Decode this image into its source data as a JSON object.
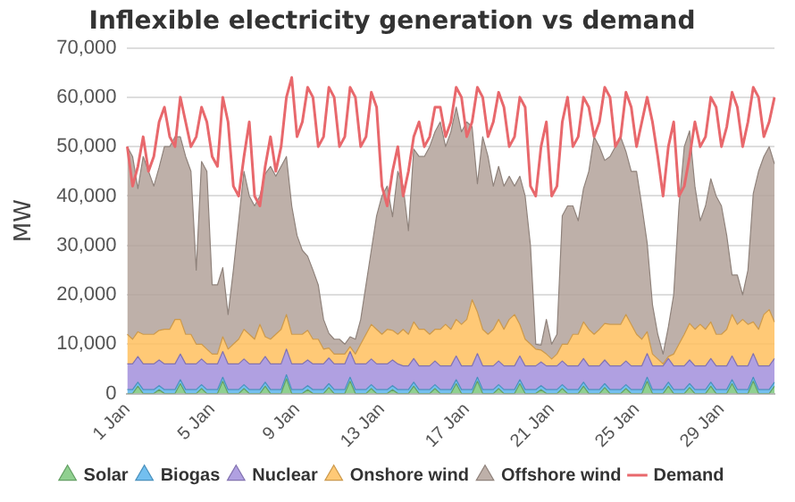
{
  "chart_data": {
    "type": "area",
    "title": "Inflexible electricity generation vs demand",
    "ylabel": "MW",
    "stacked": true,
    "grid": "y",
    "legend": "bottom",
    "marker": "none",
    "categories": [
      "1 Jan",
      null,
      null,
      null,
      null,
      null,
      null,
      null,
      null,
      null,
      null,
      null,
      null,
      null,
      null,
      null,
      "5 Jan",
      null,
      null,
      null,
      null,
      null,
      null,
      null,
      null,
      null,
      null,
      null,
      null,
      null,
      null,
      null,
      "9 Jan",
      null,
      null,
      null,
      null,
      null,
      null,
      null,
      null,
      null,
      null,
      null,
      null,
      null,
      null,
      null,
      "13 Jan",
      null,
      null,
      null,
      null,
      null,
      null,
      null,
      null,
      null,
      null,
      null,
      null,
      null,
      null,
      null,
      "17 Jan",
      null,
      null,
      null,
      null,
      null,
      null,
      null,
      null,
      null,
      null,
      null,
      null,
      null,
      null,
      null,
      "21 Jan",
      null,
      null,
      null,
      null,
      null,
      null,
      null,
      null,
      null,
      null,
      null,
      null,
      null,
      null,
      null,
      "25 Jan",
      null,
      null,
      null,
      null,
      null,
      null,
      null,
      null,
      null,
      null,
      null,
      null,
      null,
      null,
      null,
      "29 Jan",
      null,
      null,
      null,
      null,
      null,
      null,
      null,
      null,
      null,
      null
    ],
    "ylim": [
      0,
      70000
    ],
    "yticks": [
      0,
      {
        "value": 10000,
        "label": "10,000"
      },
      {
        "value": 20000,
        "label": "20,000"
      },
      {
        "value": 30000,
        "label": "30,000"
      },
      {
        "value": 40000,
        "label": "40,000"
      },
      {
        "value": 50000,
        "label": "50,000"
      },
      {
        "value": 60000,
        "label": "60,000"
      },
      {
        "value": 70000,
        "label": "70,000"
      }
    ],
    "series": [
      {
        "name": "Solar",
        "type": "area",
        "color": "#7cc87c",
        "values": [
          0,
          0,
          1500,
          0,
          0,
          0,
          800,
          0,
          0,
          0,
          2000,
          0,
          0,
          0,
          1000,
          0,
          0,
          0,
          2500,
          0,
          0,
          0,
          1000,
          0,
          0,
          0,
          1500,
          0,
          0,
          0,
          3000,
          0,
          0,
          0,
          800,
          0,
          0,
          0,
          1200,
          0,
          0,
          0,
          2500,
          0,
          0,
          0,
          1000,
          0,
          0,
          0,
          800,
          0,
          0,
          0,
          1500,
          0,
          0,
          0,
          1000,
          0,
          0,
          0,
          2000,
          0,
          0,
          0,
          2500,
          0,
          0,
          0,
          1000,
          0,
          0,
          0,
          2000,
          0,
          0,
          0,
          800,
          0,
          0,
          0,
          1000,
          0,
          0,
          0,
          1500,
          0,
          0,
          0,
          1200,
          0,
          0,
          0,
          1000,
          0,
          0,
          0,
          2500,
          0,
          0,
          0,
          1500,
          0,
          0,
          0,
          1200,
          0,
          0,
          0,
          1500,
          0,
          0,
          0,
          2000,
          0,
          0,
          0,
          2500,
          0,
          0,
          0,
          1500
        ]
      },
      {
        "name": "Biogas",
        "type": "area",
        "color": "#5ab4ec",
        "values": [
          800,
          800,
          800,
          800,
          800,
          800,
          800,
          800,
          800,
          800,
          800,
          800,
          800,
          800,
          800,
          800,
          800,
          800,
          800,
          800,
          800,
          800,
          800,
          800,
          800,
          800,
          800,
          800,
          800,
          800,
          800,
          800,
          800,
          800,
          800,
          800,
          800,
          800,
          800,
          800,
          800,
          800,
          800,
          800,
          800,
          800,
          800,
          800,
          800,
          800,
          800,
          800,
          800,
          800,
          800,
          800,
          800,
          800,
          800,
          800,
          800,
          800,
          800,
          800,
          800,
          800,
          800,
          800,
          800,
          800,
          800,
          800,
          800,
          800,
          800,
          800,
          800,
          800,
          800,
          800,
          800,
          800,
          800,
          800,
          800,
          800,
          800,
          800,
          800,
          800,
          800,
          800,
          800,
          800,
          800,
          800,
          800,
          800,
          800,
          800,
          800,
          800,
          800,
          800,
          800,
          800,
          800,
          800,
          800,
          800,
          800,
          800,
          800,
          800,
          800,
          800,
          800,
          800,
          800,
          800,
          800,
          800,
          800
        ]
      },
      {
        "name": "Nuclear",
        "type": "area",
        "color": "#a28fdc",
        "values": [
          5200,
          5200,
          5200,
          5200,
          5200,
          5200,
          5200,
          5200,
          5200,
          5200,
          5200,
          5200,
          5200,
          5200,
          5200,
          5200,
          5200,
          5200,
          5200,
          5200,
          5200,
          5200,
          5200,
          5200,
          5200,
          5200,
          5200,
          5200,
          5200,
          5200,
          5200,
          5200,
          5200,
          5200,
          5200,
          5200,
          5200,
          5200,
          5200,
          5200,
          5200,
          5200,
          5200,
          5200,
          5200,
          5200,
          5200,
          5200,
          5200,
          5200,
          5200,
          5200,
          4800,
          4800,
          4800,
          4800,
          4800,
          4800,
          4800,
          4800,
          4800,
          4800,
          4800,
          4800,
          4800,
          4800,
          4800,
          4800,
          4800,
          4800,
          4800,
          4800,
          4800,
          4800,
          4800,
          4800,
          4800,
          4800,
          4800,
          4800,
          4800,
          4800,
          4800,
          4800,
          4800,
          4800,
          4800,
          4800,
          4800,
          4800,
          4800,
          4800,
          4800,
          4800,
          4800,
          4800,
          4800,
          4800,
          4800,
          4800,
          4800,
          4800,
          4800,
          4800,
          4800,
          4800,
          4800,
          4800,
          4800,
          4800,
          4800,
          4800,
          4800,
          4800,
          4800,
          4800,
          4800,
          4800,
          4800,
          4800,
          4800,
          4800,
          4800
        ]
      },
      {
        "name": "Onshore wind",
        "type": "area",
        "color": "#ffbf5e",
        "values": [
          6000,
          5000,
          5000,
          6000,
          6000,
          6000,
          6000,
          7000,
          7000,
          9000,
          7000,
          6000,
          6000,
          4000,
          3000,
          3000,
          2000,
          2000,
          3000,
          3000,
          4000,
          5000,
          6000,
          6000,
          5000,
          8000,
          4000,
          5000,
          6000,
          7000,
          7000,
          6000,
          6000,
          6000,
          6000,
          5000,
          5000,
          3000,
          2000,
          2000,
          2000,
          2000,
          1000,
          2000,
          4000,
          6000,
          7000,
          7000,
          6000,
          7000,
          6000,
          6000,
          7400,
          6400,
          7400,
          7400,
          7400,
          6400,
          6400,
          7400,
          8400,
          7400,
          7400,
          8400,
          9400,
          13400,
          8400,
          7400,
          6400,
          7400,
          8400,
          7400,
          9400,
          10400,
          6400,
          5400,
          4400,
          3400,
          2400,
          2400,
          1400,
          2400,
          3400,
          4400,
          6400,
          6400,
          7400,
          7400,
          6400,
          7400,
          7400,
          8400,
          8400,
          8400,
          9400,
          8400,
          6400,
          5400,
          4400,
          2400,
          1400,
          400,
          400,
          2400,
          4400,
          6400,
          7400,
          7400,
          8400,
          7400,
          7400,
          6400,
          6400,
          7400,
          8400,
          8400,
          9400,
          8400,
          6400,
          7400,
          10400,
          11400,
          7400
        ]
      },
      {
        "name": "Offshore wind",
        "type": "area",
        "color": "#b3a29a",
        "values": [
          38000,
          37000,
          29000,
          36000,
          33000,
          30000,
          33000,
          37000,
          37000,
          37000,
          37000,
          36000,
          33000,
          15000,
          37000,
          36000,
          14000,
          14000,
          14000,
          7000,
          15000,
          24000,
          32000,
          28000,
          27000,
          26000,
          33000,
          35000,
          32000,
          33000,
          32000,
          26000,
          20000,
          17000,
          15000,
          14000,
          11000,
          6000,
          3000,
          3000,
          3000,
          2000,
          2000,
          3000,
          5000,
          10000,
          15000,
          23000,
          28000,
          29000,
          23000,
          33000,
          29000,
          21000,
          35000,
          35000,
          35000,
          38000,
          40000,
          42000,
          36000,
          40000,
          43000,
          39000,
          40000,
          35000,
          26000,
          39000,
          36000,
          29000,
          31000,
          29000,
          29000,
          26000,
          30000,
          29000,
          20000,
          1000,
          1000,
          7000,
          3000,
          4000,
          26000,
          28000,
          26000,
          23000,
          27000,
          32000,
          40000,
          37000,
          33000,
          34000,
          36000,
          38000,
          33000,
          31000,
          33000,
          27000,
          18000,
          10000,
          5000,
          2000,
          6000,
          12000,
          28000,
          38000,
          39000,
          29000,
          21000,
          25000,
          29000,
          28000,
          26000,
          19000,
          8000,
          10000,
          5000,
          11000,
          26000,
          32000,
          32000,
          33000,
          32000
        ]
      },
      {
        "name": "Demand",
        "type": "line",
        "color": "#e8686c",
        "values": [
          50000,
          42000,
          46000,
          52000,
          45000,
          48000,
          55000,
          58000,
          52000,
          50000,
          60000,
          55000,
          50000,
          52000,
          58000,
          55000,
          48000,
          46000,
          60000,
          55000,
          42000,
          40000,
          48000,
          55000,
          40000,
          38000,
          46000,
          52000,
          45000,
          50000,
          60000,
          64000,
          52000,
          55000,
          62000,
          60000,
          50000,
          52000,
          62000,
          60000,
          50000,
          52000,
          62000,
          60000,
          50000,
          52000,
          61000,
          58000,
          42000,
          38000,
          45000,
          50000,
          40000,
          45000,
          52000,
          55000,
          50000,
          52000,
          58000,
          58000,
          52000,
          55000,
          62000,
          60000,
          52000,
          55000,
          62000,
          60000,
          52000,
          55000,
          61000,
          58000,
          50000,
          52000,
          60000,
          58000,
          42000,
          40000,
          50000,
          55000,
          40000,
          42000,
          55000,
          60000,
          50000,
          52000,
          60000,
          58000,
          52000,
          55000,
          62000,
          60000,
          50000,
          52000,
          61000,
          58000,
          50000,
          55000,
          60000,
          55000,
          48000,
          40000,
          50000,
          55000,
          40000,
          42000,
          48000,
          55000,
          50000,
          52000,
          60000,
          58000,
          50000,
          54000,
          61000,
          58000,
          50000,
          55000,
          62000,
          60000,
          52000,
          55000,
          60000
        ]
      }
    ]
  }
}
